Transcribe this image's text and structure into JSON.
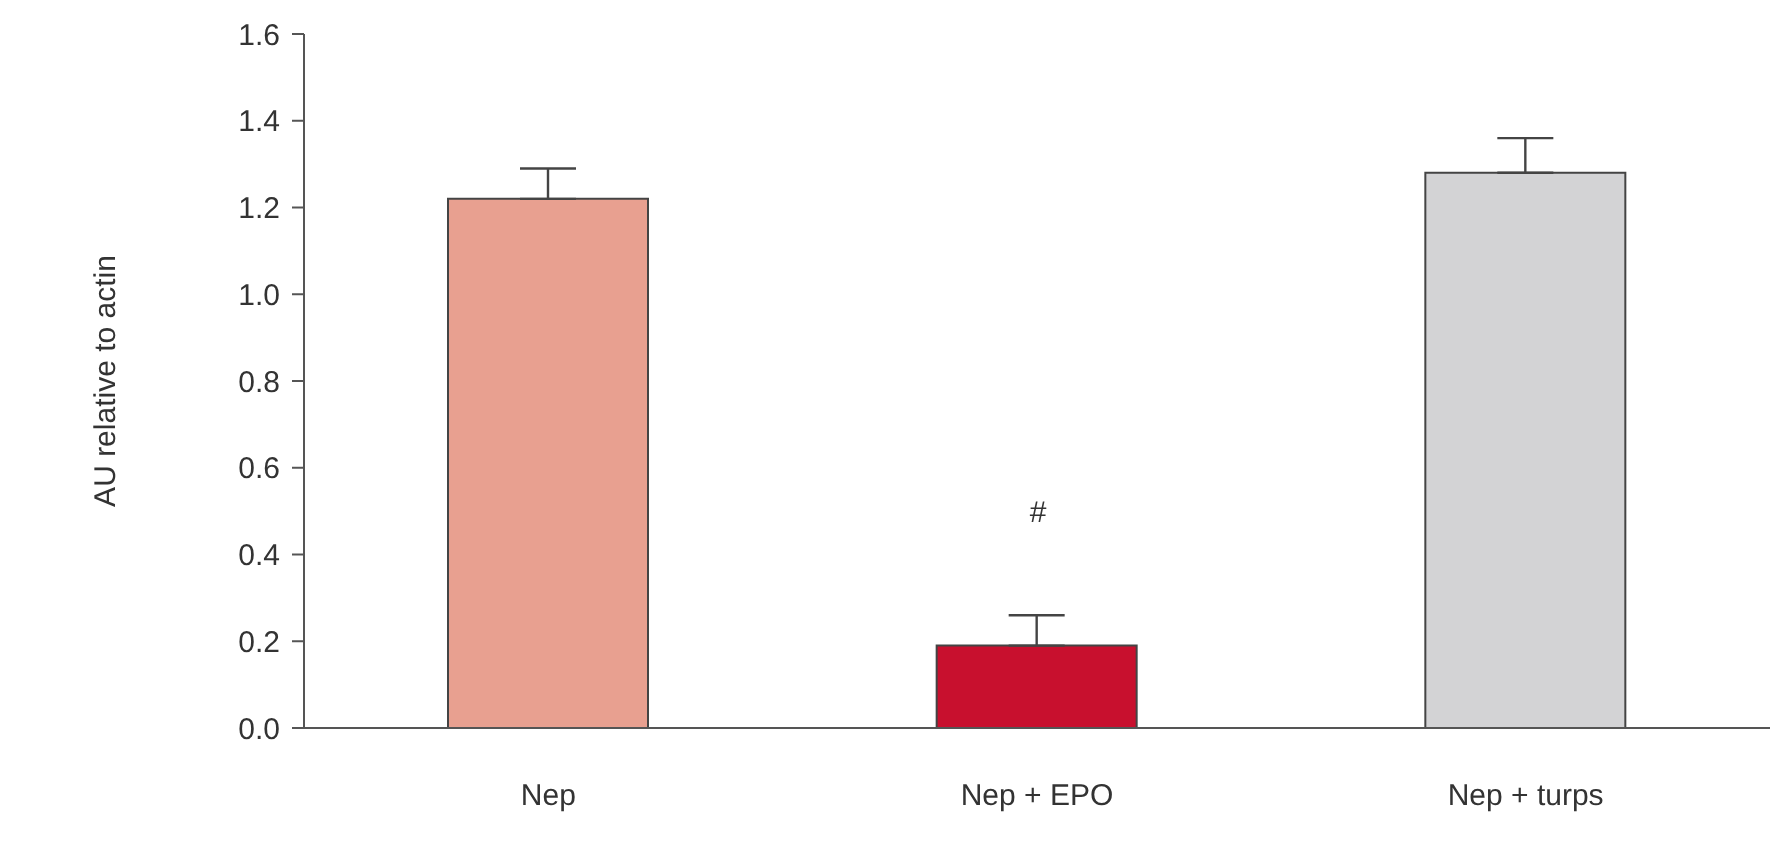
{
  "chart_data": {
    "type": "bar",
    "ylabel": "AU relative to actin",
    "categories": [
      "Nep",
      "Nep + EPO",
      "Nep + turps"
    ],
    "values": [
      1.22,
      0.19,
      1.28
    ],
    "colors": [
      "#e8a090",
      "#c8102e",
      "#d3d3d5"
    ],
    "errors": [
      [
        1.22,
        1.29
      ],
      [
        0.19,
        0.26
      ],
      [
        1.28,
        1.36
      ]
    ],
    "ylim": [
      0,
      1.6
    ],
    "yticks": [
      {
        "value": 0,
        "label": "0.0"
      },
      {
        "value": 0.2,
        "label": "0.2"
      },
      {
        "value": 0.4,
        "label": "0.4"
      },
      {
        "value": 0.6,
        "label": "0.6"
      },
      {
        "value": 0.8,
        "label": "0.8"
      },
      {
        "value": 1,
        "label": "1.0"
      },
      {
        "value": 1.2,
        "label": "1.2"
      },
      {
        "value": 1.4,
        "label": "1.4"
      },
      {
        "value": 1.6,
        "label": "1.6"
      }
    ],
    "annotations": [
      "#"
    ],
    "grid": false,
    "legend": false
  }
}
